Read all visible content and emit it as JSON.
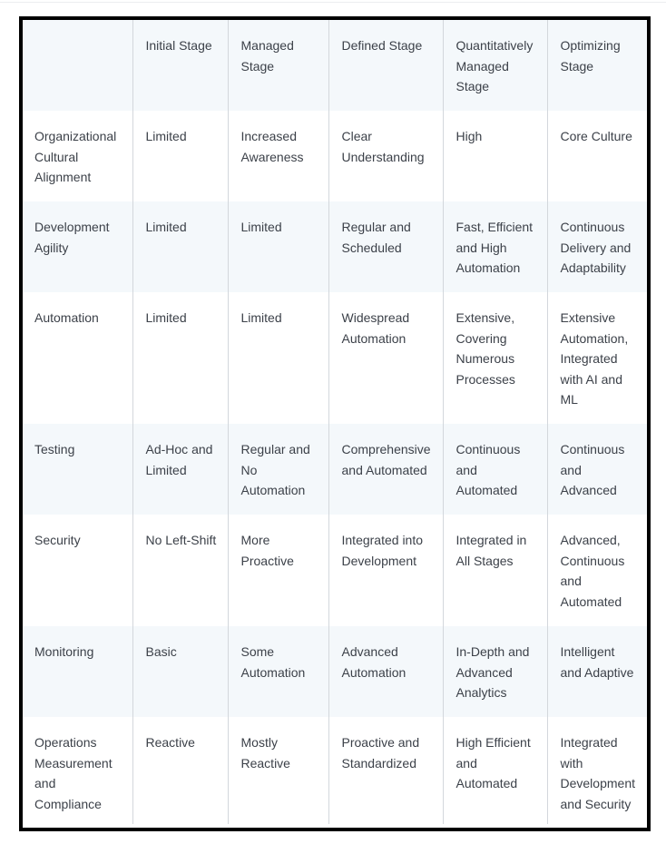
{
  "table": {
    "header": [
      "",
      "Initial Stage",
      "Managed Stage",
      "Defined Stage",
      "Quantitatively Managed Stage",
      "Optimizing Stage"
    ],
    "rows": [
      [
        "Organizational Cultural Alignment",
        "Limited",
        "Increased Awareness",
        "Clear Understanding",
        "High",
        "Core Culture"
      ],
      [
        "Development Agility",
        "Limited",
        "Limited",
        "Regular and Scheduled",
        "Fast, Efficient and High Automation",
        "Continuous Delivery and Adaptability"
      ],
      [
        "Automation",
        "Limited",
        "Limited",
        "Widespread Automation",
        "Extensive, Covering Numerous Processes",
        "Extensive Automation, Integrated with AI and ML"
      ],
      [
        "Testing",
        "Ad-Hoc and Limited",
        "Regular and No Automation",
        "Comprehensive and Automated",
        "Continuous and Automated",
        "Continuous and Advanced"
      ],
      [
        "Security",
        "No Left-Shift",
        "More Proactive",
        "Integrated into Development",
        "Integrated in All Stages",
        "Advanced, Continuous and Automated"
      ],
      [
        "Monitoring",
        "Basic",
        "Some Automation",
        "Advanced Automation",
        "In-Depth and Advanced Analytics",
        "Intelligent and Adaptive"
      ],
      [
        "Operations Measurement and Compliance",
        "Reactive",
        "Mostly Reactive",
        "Proactive and Standardized",
        "High Efficient and Automated",
        "Integrated with Development and Security"
      ]
    ]
  }
}
